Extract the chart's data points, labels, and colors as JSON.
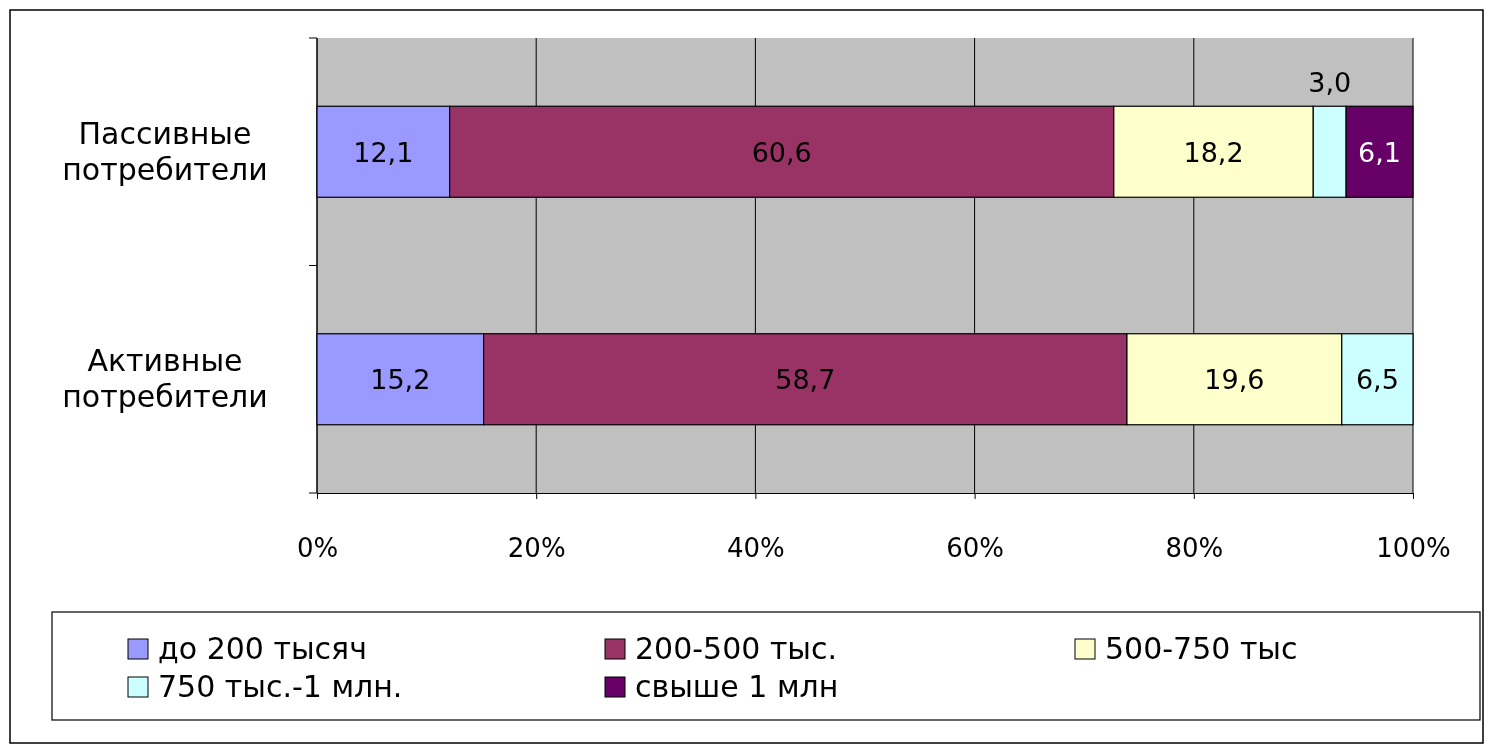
{
  "chart_data": {
    "type": "bar",
    "orientation": "horizontal",
    "stacked": true,
    "categories": [
      "Пассивные потребители",
      "Активные потребители"
    ],
    "series": [
      {
        "name": "до 200 тысяч",
        "color": "#9999ff",
        "values": [
          12.1,
          15.2
        ],
        "value_labels": [
          "12,1",
          "15,2"
        ]
      },
      {
        "name": "200-500 тыс.",
        "color": "#993366",
        "values": [
          60.6,
          58.7
        ],
        "value_labels": [
          "60,6",
          "58,7"
        ]
      },
      {
        "name": "500-750 тыс",
        "color": "#ffffcc",
        "values": [
          18.2,
          19.6
        ],
        "value_labels": [
          "18,2",
          "19,6"
        ]
      },
      {
        "name": "750 тыс.-1 млн.",
        "color": "#ccffff",
        "values": [
          3.0,
          6.5
        ],
        "value_labels": [
          "3,0",
          "6,5"
        ]
      },
      {
        "name": "свыше 1 млн",
        "color": "#660066",
        "values": [
          6.1,
          null
        ],
        "value_labels": [
          "6,1",
          null
        ]
      }
    ],
    "xlim": [
      0,
      100
    ],
    "xticks": [
      {
        "value": 0,
        "label": "0%"
      },
      {
        "value": 20,
        "label": "20%"
      },
      {
        "value": 40,
        "label": "40%"
      },
      {
        "value": 60,
        "label": "60%"
      },
      {
        "value": 80,
        "label": "80%"
      },
      {
        "value": 100,
        "label": "100%"
      }
    ],
    "grid": "x",
    "legend": "bottom"
  }
}
